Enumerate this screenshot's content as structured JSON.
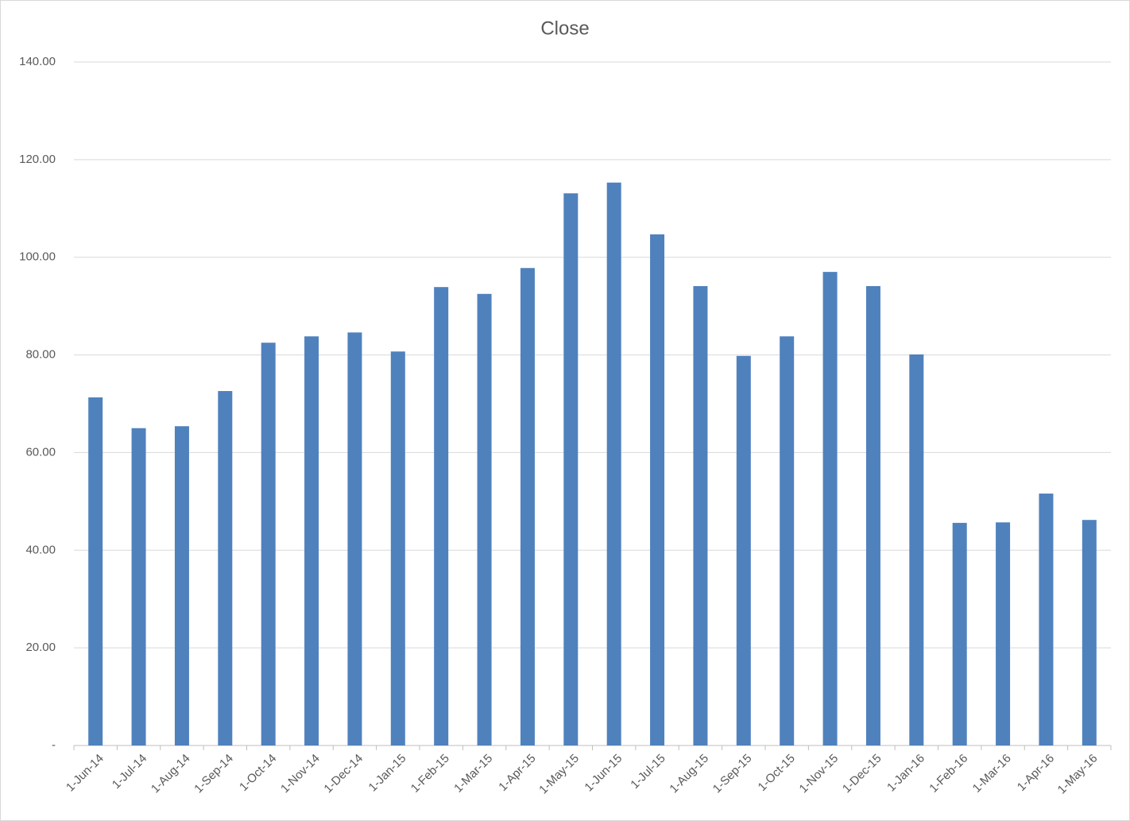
{
  "chart_data": {
    "type": "bar",
    "title": "Close",
    "categories": [
      "1-Jun-14",
      "1-Jul-14",
      "1-Aug-14",
      "1-Sep-14",
      "1-Oct-14",
      "1-Nov-14",
      "1-Dec-14",
      "1-Jan-15",
      "1-Feb-15",
      "1-Mar-15",
      "1-Apr-15",
      "1-May-15",
      "1-Jun-15",
      "1-Jul-15",
      "1-Aug-15",
      "1-Sep-15",
      "1-Oct-15",
      "1-Nov-15",
      "1-Dec-15",
      "1-Jan-16",
      "1-Feb-16",
      "1-Mar-16",
      "1-Apr-16",
      "1-May-16"
    ],
    "values": [
      71.3,
      65.0,
      65.4,
      72.6,
      82.5,
      83.8,
      84.6,
      80.7,
      93.9,
      92.5,
      97.8,
      113.1,
      115.3,
      104.7,
      94.1,
      79.8,
      83.8,
      97.0,
      94.1,
      80.1,
      45.6,
      45.7,
      51.6,
      46.2
    ],
    "color": "#4f81bd",
    "ylim": [
      0,
      140
    ],
    "yticks": [
      {
        "value": 0,
        "label": "-"
      },
      {
        "value": 20,
        "label": "20.00"
      },
      {
        "value": 40,
        "label": "40.00"
      },
      {
        "value": 60,
        "label": "60.00"
      },
      {
        "value": 80,
        "label": "80.00"
      },
      {
        "value": 100,
        "label": "100.00"
      },
      {
        "value": 120,
        "label": "120.00"
      },
      {
        "value": 140,
        "label": "140.00"
      }
    ],
    "grid": true
  }
}
